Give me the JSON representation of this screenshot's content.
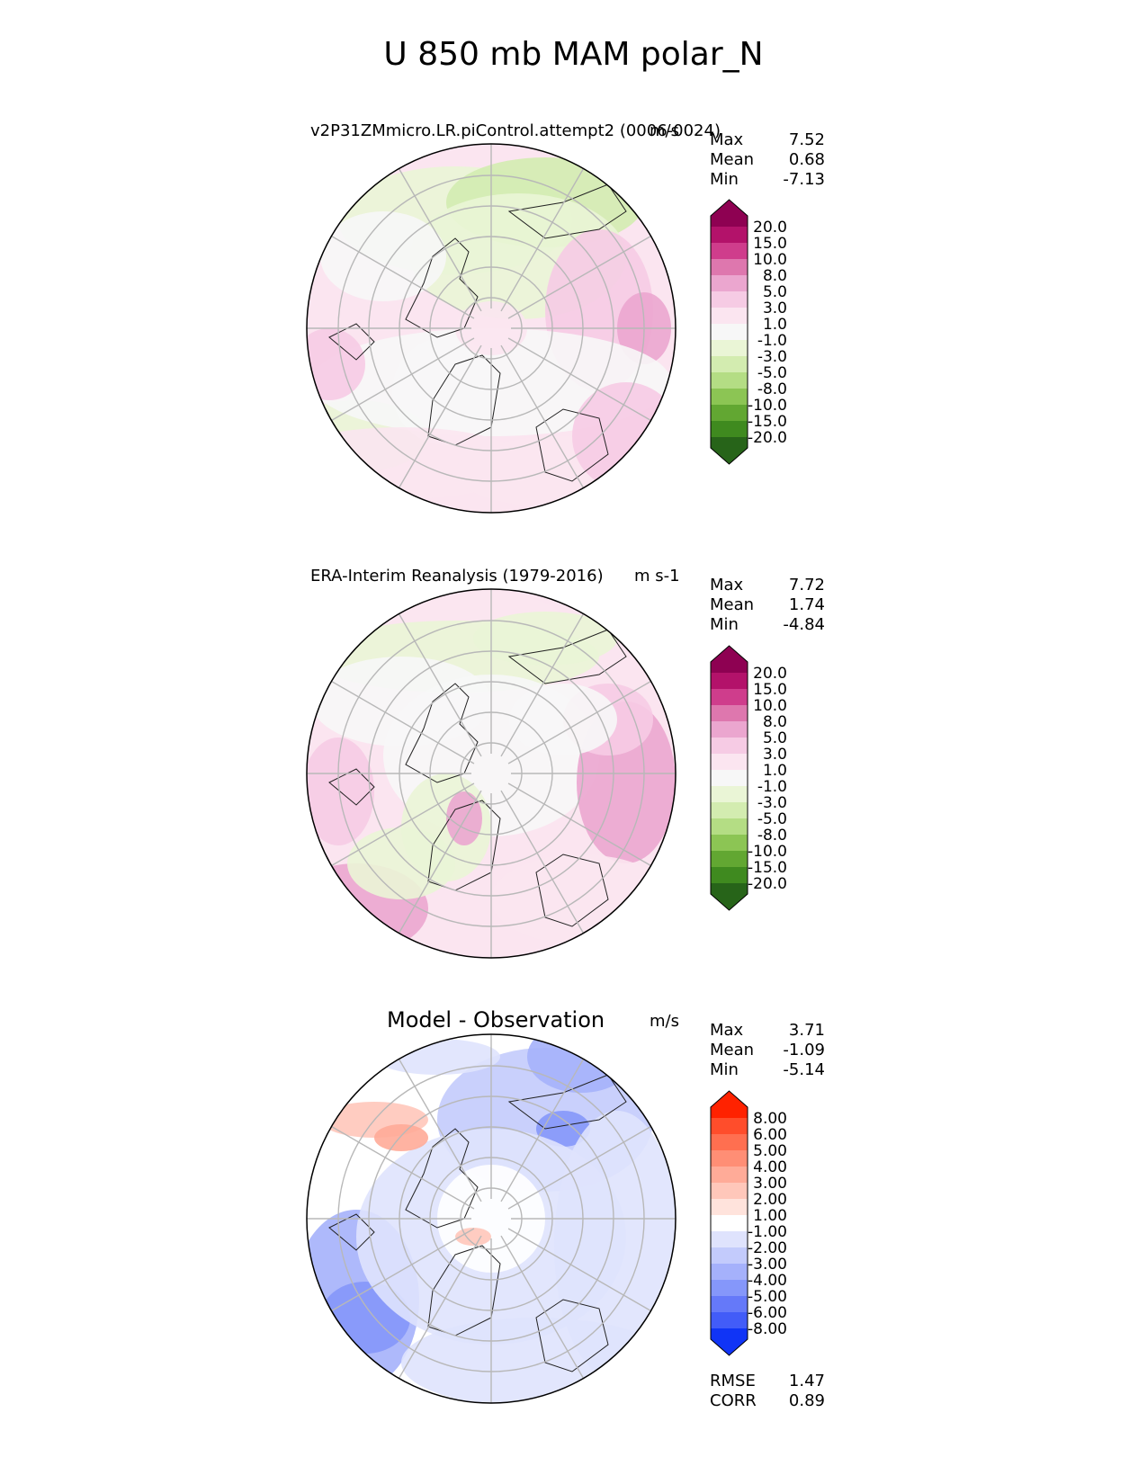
{
  "figure": {
    "title": "U 850 mb MAM polar_N"
  },
  "chart_data": [
    {
      "type": "heatmap",
      "projection": "north polar stereographic",
      "title": "v2P31ZMmicro.LR.piControl.attempt2 (0006-0024)",
      "units": "m/s",
      "stats": {
        "Max": "7.52",
        "Mean": "0.68",
        "Min": "-7.13"
      },
      "colorbar_labels": [
        "20.0",
        "15.0",
        "10.0",
        "8.0",
        "5.0",
        "3.0",
        "1.0",
        "-1.0",
        "-3.0",
        "-5.0",
        "-8.0",
        "-10.0",
        "-15.0",
        "-20.0"
      ],
      "colorbar_colors": [
        "#8e0152",
        "#b3126a",
        "#cf3d8c",
        "#de77ae",
        "#eba6cf",
        "#f6cbe4",
        "#fbe5f0",
        "#f7f7f7",
        "#eaf5d6",
        "#d3ecb0",
        "#b4dd84",
        "#8cc554",
        "#62a732",
        "#3f8a1f",
        "#276419"
      ]
    },
    {
      "type": "heatmap",
      "projection": "north polar stereographic",
      "title": "ERA-Interim Reanalysis (1979-2016)",
      "units": "m s-1",
      "stats": {
        "Max": "7.72",
        "Mean": "1.74",
        "Min": "-4.84"
      },
      "colorbar_labels": [
        "20.0",
        "15.0",
        "10.0",
        "8.0",
        "5.0",
        "3.0",
        "1.0",
        "-1.0",
        "-3.0",
        "-5.0",
        "-8.0",
        "-10.0",
        "-15.0",
        "-20.0"
      ],
      "colorbar_colors": [
        "#8e0152",
        "#b3126a",
        "#cf3d8c",
        "#de77ae",
        "#eba6cf",
        "#f6cbe4",
        "#fbe5f0",
        "#f7f7f7",
        "#eaf5d6",
        "#d3ecb0",
        "#b4dd84",
        "#8cc554",
        "#62a732",
        "#3f8a1f",
        "#276419"
      ]
    },
    {
      "type": "heatmap",
      "projection": "north polar stereographic",
      "title": "Model - Observation",
      "units": "m/s",
      "stats": {
        "Max": "3.71",
        "Mean": "-1.09",
        "Min": "-5.14"
      },
      "extra_stats": {
        "RMSE": "1.47",
        "CORR": "0.89"
      },
      "colorbar_labels": [
        "8.00",
        "6.00",
        "5.00",
        "4.00",
        "3.00",
        "2.00",
        "1.00",
        "-1.00",
        "-2.00",
        "-3.00",
        "-4.00",
        "-5.00",
        "-6.00",
        "-8.00"
      ],
      "colorbar_colors": [
        "#ff2200",
        "#ff4d2b",
        "#ff6f50",
        "#ff8e75",
        "#ffab98",
        "#ffc7ba",
        "#ffe3dc",
        "#ffffff",
        "#dfe3fd",
        "#c3cbfc",
        "#a5b1fb",
        "#8597fa",
        "#6579f9",
        "#425cf8",
        "#1034f6"
      ]
    }
  ]
}
